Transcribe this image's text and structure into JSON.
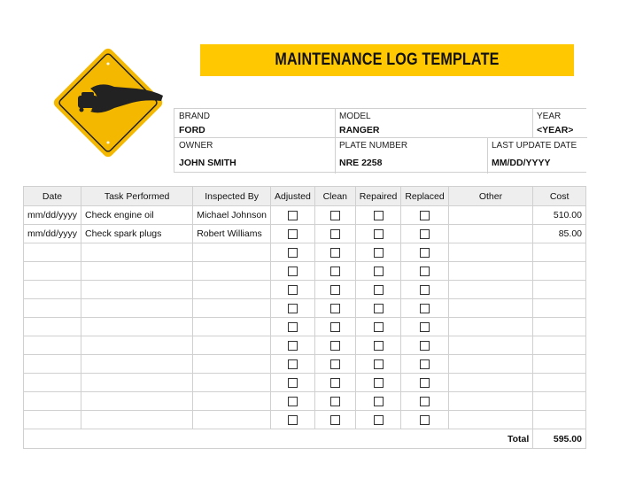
{
  "title": "MAINTENANCE LOG TEMPLATE",
  "logo": {
    "icon": "car-wrench-warning-sign",
    "color": "#ffc000"
  },
  "vehicle": {
    "brand_label": "BRAND",
    "brand": "FORD",
    "model_label": "MODEL",
    "model": "RANGER",
    "year_label": "YEAR",
    "year": "<YEAR>",
    "owner_label": "OWNER",
    "owner": "JOHN SMITH",
    "plate_label": "PLATE NUMBER",
    "plate": "NRE 2258",
    "update_label": "LAST UPDATE DATE",
    "update": "MM/DD/YYYY"
  },
  "log": {
    "headers": [
      "Date",
      "Task Performed",
      "Inspected By",
      "Adjusted",
      "Clean",
      "Repaired",
      "Replaced",
      "Other",
      "Cost"
    ],
    "rows": [
      {
        "date": "mm/dd/yyyy",
        "task": "Check engine oil",
        "inspector": "Michael Johnson",
        "adjusted": false,
        "clean": false,
        "repaired": false,
        "replaced": false,
        "other": "",
        "cost": "510.00"
      },
      {
        "date": "mm/dd/yyyy",
        "task": "Check spark plugs",
        "inspector": "Robert Williams",
        "adjusted": false,
        "clean": false,
        "repaired": false,
        "replaced": false,
        "other": "",
        "cost": "85.00"
      },
      {},
      {},
      {},
      {},
      {},
      {},
      {},
      {},
      {},
      {}
    ],
    "total_label": "Total",
    "total": "595.00"
  }
}
